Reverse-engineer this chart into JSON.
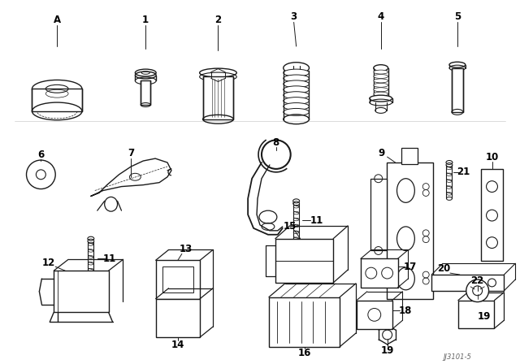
{
  "background_color": "#ffffff",
  "line_color": "#1a1a1a",
  "label_color": "#000000",
  "fig_width": 6.4,
  "fig_height": 4.48,
  "dpi": 100,
  "watermark": "JJ3101-5"
}
